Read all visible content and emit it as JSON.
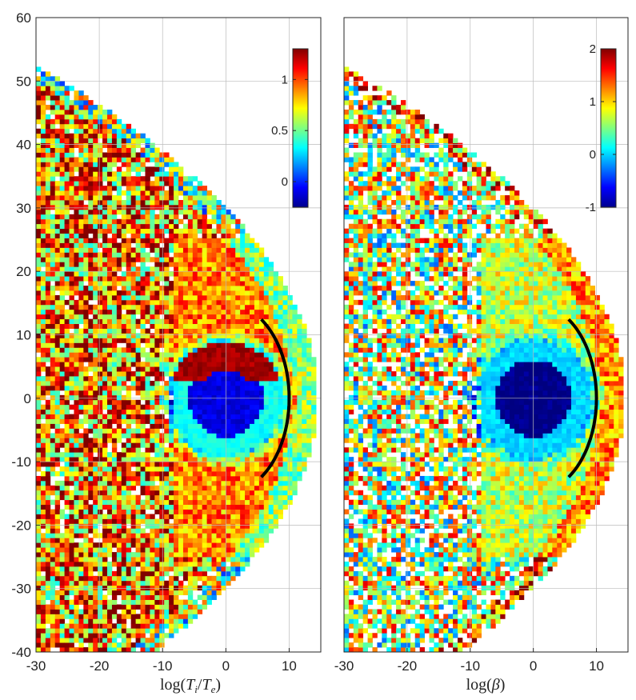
{
  "chart_data": [
    {
      "type": "heatmap",
      "xlabel": "log(T_i/T_e)",
      "xlabel_parts": {
        "pre": "log(",
        "v1": "T",
        "s1": "i",
        "mid": "/",
        "v2": "T",
        "s2": "e",
        "post": ")"
      },
      "xlim": [
        -30,
        15
      ],
      "ylim": [
        -40,
        60
      ],
      "xticks": [
        "-30",
        "-20",
        "-10",
        "0",
        "10"
      ],
      "yticks": [
        "60",
        "50",
        "40",
        "30",
        "20",
        "10",
        "0",
        "-10",
        "-20",
        "-30",
        "-40"
      ],
      "grid": true,
      "colormap": "jet",
      "clim": [
        -0.25,
        1.3
      ],
      "colorbar_ticks": [
        "1",
        "0.5",
        "0"
      ],
      "colorbar_tick_values": [
        1,
        0.5,
        0
      ],
      "colorbar_placement": "top-right",
      "overlay": {
        "type": "arc",
        "color": "#000000",
        "center": [
          0,
          0
        ],
        "radius": 10,
        "from_deg": -56,
        "to_deg": 56
      },
      "regions": [
        {
          "name": "background",
          "value": 0.9
        },
        {
          "name": "sheath band",
          "value": 0.55
        },
        {
          "name": "upper red lobe",
          "value": 1.25
        },
        {
          "name": "inner blue core",
          "value": -0.1
        },
        {
          "name": "cyan ring",
          "value": 0.35
        }
      ]
    },
    {
      "type": "heatmap",
      "xlabel": "log(β)",
      "xlabel_parts": {
        "pre": "log(",
        "v1": "β",
        "post": ")"
      },
      "xlim": [
        -30,
        15
      ],
      "ylim": [
        -40,
        60
      ],
      "xticks": [
        "-30",
        "-20",
        "-10",
        "0",
        "10"
      ],
      "grid": true,
      "colormap": "jet",
      "clim": [
        -1,
        2
      ],
      "colorbar_ticks": [
        "2",
        "1",
        "0",
        "-1"
      ],
      "colorbar_tick_values": [
        2,
        1,
        0,
        -1
      ],
      "colorbar_placement": "top-right",
      "overlay": {
        "type": "arc",
        "color": "#000000",
        "center": [
          0,
          0
        ],
        "radius": 10,
        "from_deg": -56,
        "to_deg": 56
      },
      "regions": [
        {
          "name": "background",
          "value": 0.7
        },
        {
          "name": "sheath band",
          "value": 1.2
        },
        {
          "name": "inner blue core",
          "value": -1.0
        },
        {
          "name": "cyan ring",
          "value": 0.0
        }
      ]
    }
  ]
}
